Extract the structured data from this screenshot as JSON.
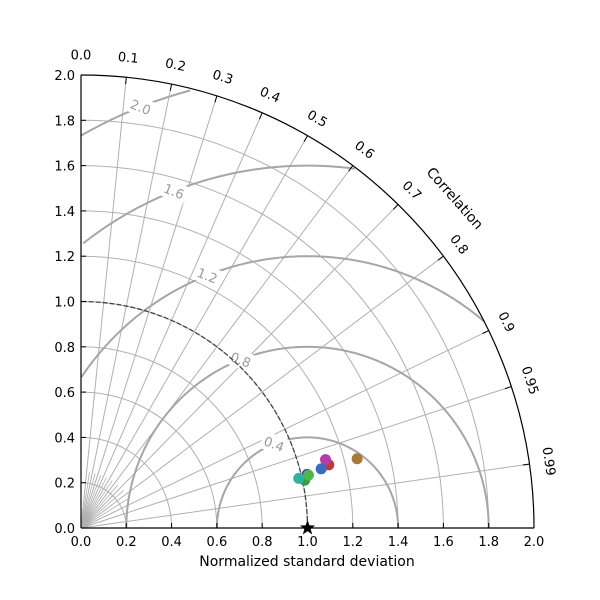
{
  "chart_data": {
    "type": "taylor",
    "xlabel": "Normalized standard deviation",
    "corr_label": "Correlation",
    "std_max": 2.0,
    "std_ticks": [
      "0.0",
      "0.2",
      "0.4",
      "0.6",
      "0.8",
      "1.0",
      "1.2",
      "1.4",
      "1.6",
      "1.8",
      "2.0"
    ],
    "corr_ticks": [
      "0.0",
      "0.1",
      "0.2",
      "0.3",
      "0.4",
      "0.5",
      "0.6",
      "0.7",
      "0.8",
      "0.9",
      "0.95",
      "0.99"
    ],
    "std_grid_circles": [
      0.2,
      0.4,
      0.6,
      0.8,
      1.0,
      1.2,
      1.4,
      1.6,
      1.8
    ],
    "reference": {
      "std": 1.0,
      "corr": 1.0,
      "marker": "star"
    },
    "reference_arc_std": 1.0,
    "rms_contours": [
      0.4,
      0.8,
      1.2,
      1.6,
      2.0
    ],
    "rms_labels": [
      "0.4",
      "0.8",
      "1.2",
      "1.6",
      "2.0"
    ],
    "grid": true,
    "points": [
      {
        "std": 1.026,
        "corr": 0.973,
        "color": "#4a3aa0"
      },
      {
        "std": 1.129,
        "corr": 0.969,
        "color": "#c0393c"
      },
      {
        "std": 1.092,
        "corr": 0.971,
        "color": "#3a6bc0"
      },
      {
        "std": 1.121,
        "corr": 0.963,
        "color": "#b33ea6"
      },
      {
        "std": 1.257,
        "corr": 0.97,
        "color": "#a8793a"
      },
      {
        "std": 1.01,
        "corr": 0.978,
        "color": "#3a9a4a"
      },
      {
        "std": 0.986,
        "corr": 0.975,
        "color": "#2db39a"
      },
      {
        "std": 1.031,
        "corr": 0.974,
        "color": "#4ab84a"
      }
    ]
  }
}
